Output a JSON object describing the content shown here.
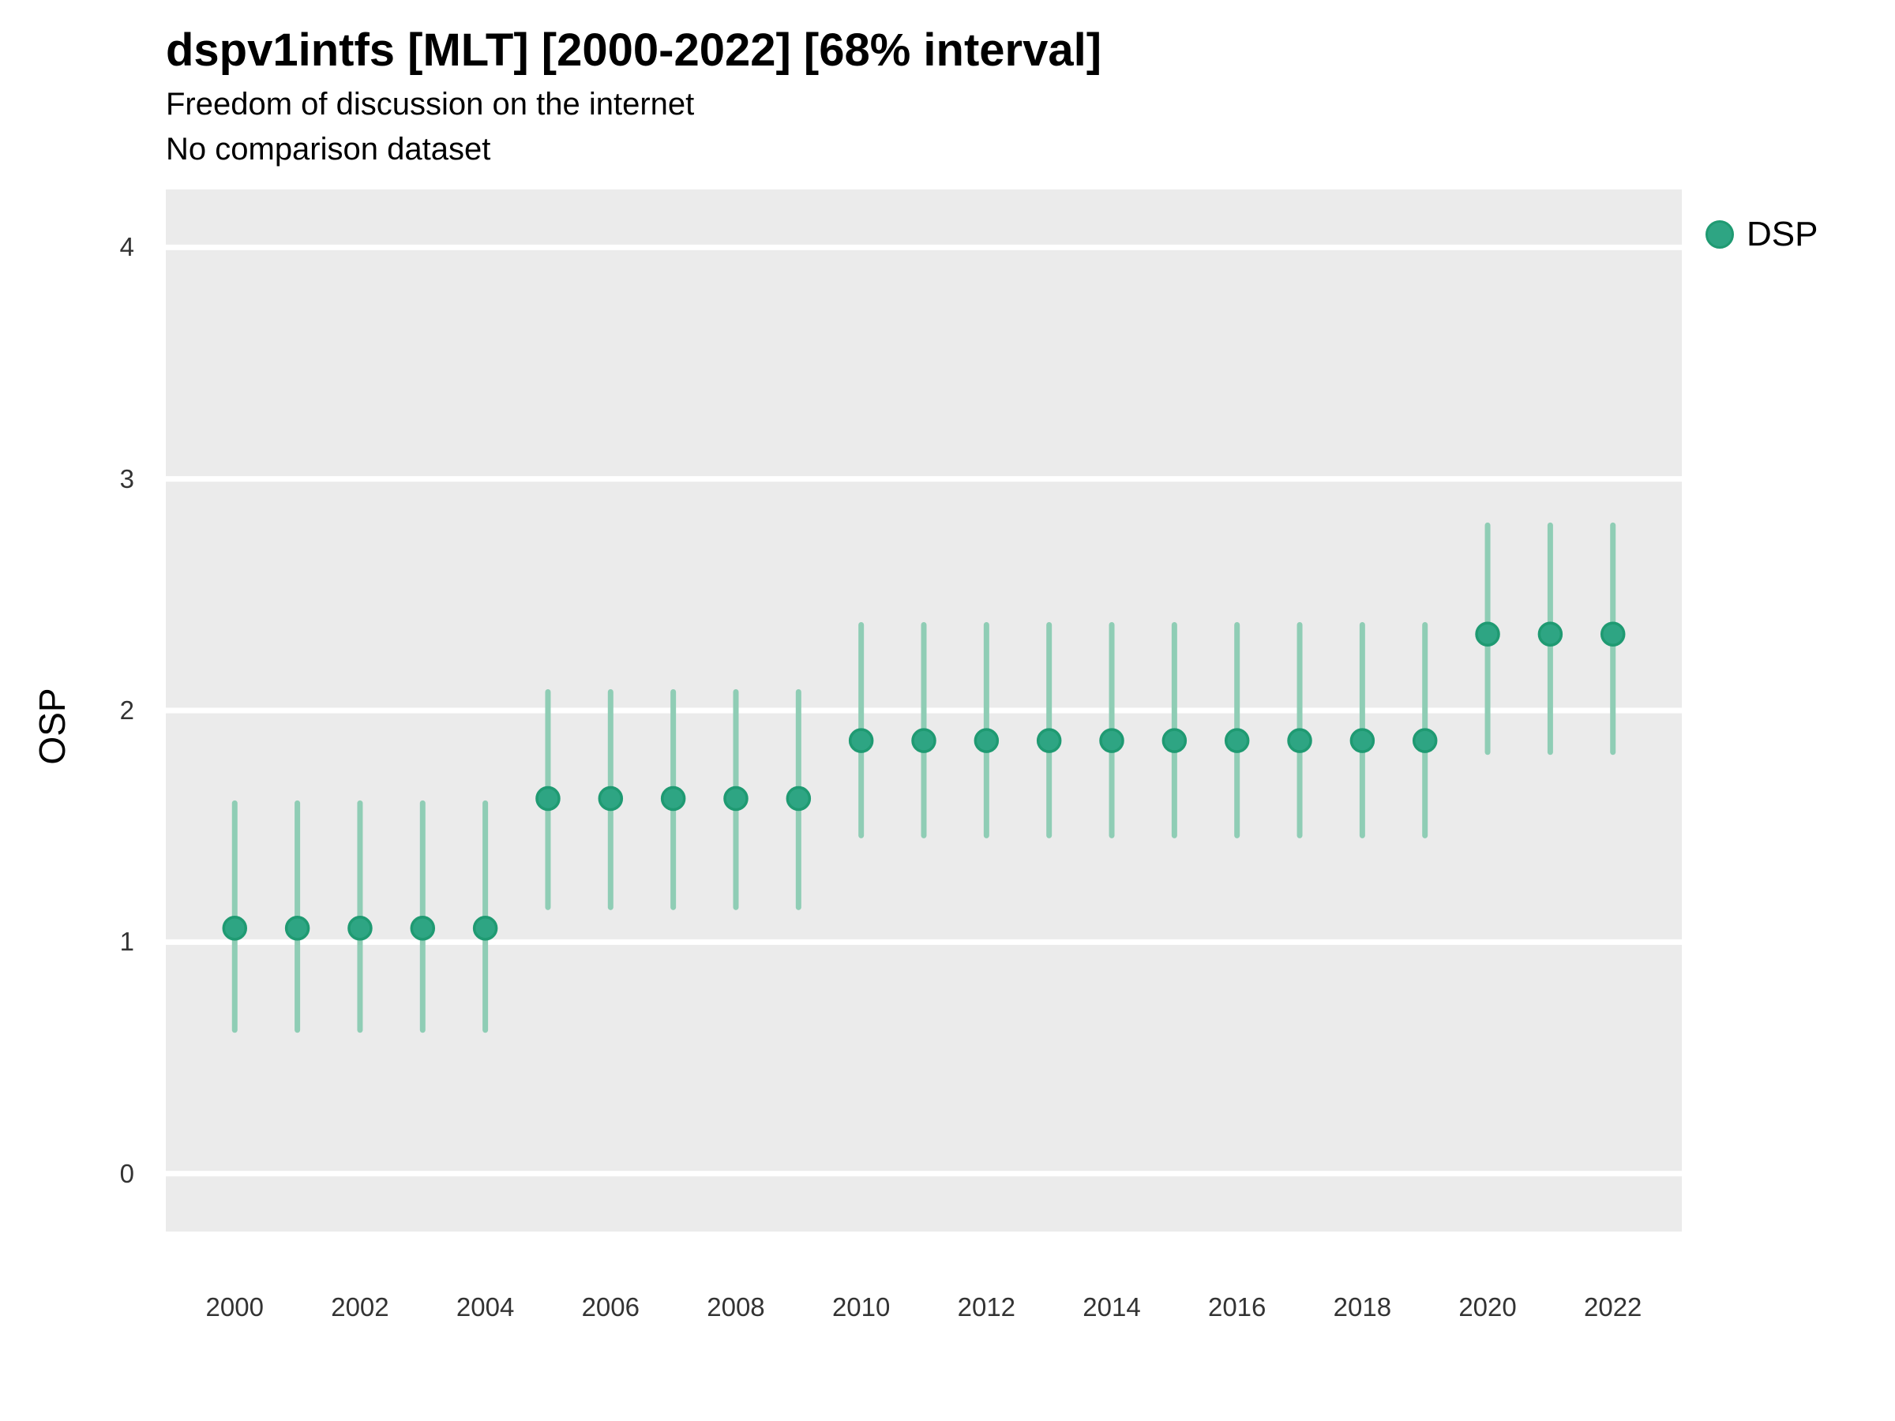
{
  "header": {
    "title": "dspv1intfs [MLT] [2000-2022] [68% interval]",
    "subtitle": "Freedom of discussion on the internet",
    "subtitle2": "No comparison dataset"
  },
  "legend": {
    "items": [
      {
        "label": "DSP",
        "color": "#2EA583"
      }
    ]
  },
  "axes": {
    "y_label": "OSP",
    "y_ticks": [
      0,
      1,
      2,
      3,
      4
    ],
    "x_tick_years": [
      2000,
      2002,
      2004,
      2006,
      2008,
      2010,
      2012,
      2014,
      2016,
      2018,
      2020,
      2022
    ]
  },
  "colors": {
    "point": "#2EA583",
    "point_stroke": "#1F9A72",
    "interval": "#8FCDB5",
    "panel_bg": "#EBEBEB",
    "grid": "#FFFFFF",
    "title_text": "#000000",
    "axis_text": "#333333"
  },
  "chart_data": {
    "type": "scatter",
    "subtype": "pointrange",
    "title": "dspv1intfs [MLT] [2000-2022] [68% interval]",
    "subtitle": "Freedom of discussion on the internet",
    "note": "No comparison dataset",
    "interval_level": "68%",
    "xlabel": "",
    "ylabel": "OSP",
    "xlim": [
      1998.9,
      2023.1
    ],
    "ylim": [
      -0.25,
      4.25
    ],
    "grid": "horizontal-only",
    "legend_position": "right-top",
    "x": [
      2000,
      2001,
      2002,
      2003,
      2004,
      2005,
      2006,
      2007,
      2008,
      2009,
      2010,
      2011,
      2012,
      2013,
      2014,
      2015,
      2016,
      2017,
      2018,
      2019,
      2020,
      2021,
      2022
    ],
    "series": [
      {
        "name": "DSP",
        "estimate": [
          1.06,
          1.06,
          1.06,
          1.06,
          1.06,
          1.62,
          1.62,
          1.62,
          1.62,
          1.62,
          1.87,
          1.87,
          1.87,
          1.87,
          1.87,
          1.87,
          1.87,
          1.87,
          1.87,
          1.87,
          2.33,
          2.33,
          2.33
        ],
        "lower": [
          0.62,
          0.62,
          0.62,
          0.62,
          0.62,
          1.15,
          1.15,
          1.15,
          1.15,
          1.15,
          1.46,
          1.46,
          1.46,
          1.46,
          1.46,
          1.46,
          1.46,
          1.46,
          1.46,
          1.46,
          1.82,
          1.82,
          1.82
        ],
        "upper": [
          1.6,
          1.6,
          1.6,
          1.6,
          1.6,
          2.08,
          2.08,
          2.08,
          2.08,
          2.08,
          2.37,
          2.37,
          2.37,
          2.37,
          2.37,
          2.37,
          2.37,
          2.37,
          2.37,
          2.37,
          2.8,
          2.8,
          2.8
        ]
      }
    ]
  }
}
